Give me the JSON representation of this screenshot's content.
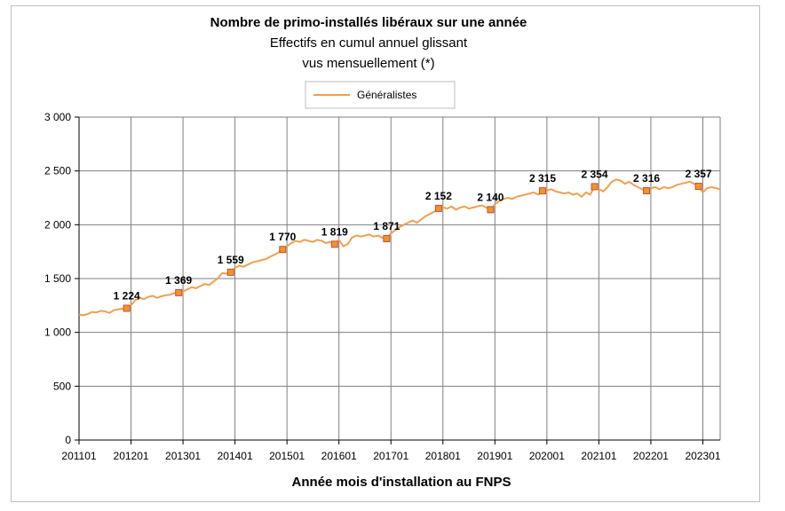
{
  "chart_data": {
    "type": "line",
    "title": "Nombre de primo-installés libéraux sur une année",
    "subtitle_lines": [
      "Effectifs en cumul annuel glissant",
      "vus mensuellement (*)"
    ],
    "xlabel": "Année mois d'installation au FNPS",
    "ylabel": "",
    "ylim": [
      0,
      3000
    ],
    "yticks": [
      0,
      500,
      1000,
      1500,
      2000,
      2500,
      3000
    ],
    "ytick_labels": [
      "0",
      "500",
      "1 000",
      "1 500",
      "2 000",
      "2 500",
      "3 000"
    ],
    "xtick_labels": [
      "201101",
      "201201",
      "201301",
      "201401",
      "201501",
      "201601",
      "201701",
      "201801",
      "201901",
      "202001",
      "202101",
      "202201",
      "202301"
    ],
    "grid": true,
    "legend_position": "top-center",
    "colors": {
      "series": "#f0a050",
      "marker_fill": "#f7941d",
      "marker_edge": "#c0504d",
      "grid": "#7f7f7f"
    },
    "series": [
      {
        "name": "Généralistes",
        "x_start": "201101",
        "frequency": "monthly",
        "values": [
          1165,
          1160,
          1170,
          1190,
          1185,
          1200,
          1195,
          1180,
          1205,
          1215,
          1220,
          1224,
          1250,
          1300,
          1320,
          1310,
          1330,
          1340,
          1320,
          1335,
          1345,
          1350,
          1365,
          1369,
          1380,
          1400,
          1420,
          1410,
          1430,
          1450,
          1440,
          1470,
          1500,
          1550,
          1545,
          1559,
          1600,
          1620,
          1610,
          1630,
          1650,
          1660,
          1670,
          1680,
          1700,
          1720,
          1740,
          1770,
          1800,
          1830,
          1850,
          1840,
          1860,
          1850,
          1840,
          1860,
          1850,
          1830,
          1840,
          1819,
          1860,
          1800,
          1820,
          1880,
          1900,
          1890,
          1900,
          1910,
          1890,
          1900,
          1880,
          1871,
          1920,
          1950,
          1980,
          2000,
          2020,
          2040,
          2020,
          2050,
          2080,
          2100,
          2120,
          2152,
          2160,
          2150,
          2170,
          2140,
          2160,
          2170,
          2150,
          2160,
          2170,
          2180,
          2160,
          2140,
          2190,
          2220,
          2240,
          2250,
          2240,
          2260,
          2270,
          2280,
          2290,
          2300,
          2280,
          2315,
          2320,
          2330,
          2310,
          2300,
          2290,
          2300,
          2280,
          2290,
          2260,
          2300,
          2280,
          2354,
          2330,
          2310,
          2350,
          2400,
          2420,
          2410,
          2380,
          2400,
          2370,
          2350,
          2330,
          2316,
          2340,
          2350,
          2330,
          2350,
          2340,
          2350,
          2370,
          2380,
          2390,
          2400,
          2380,
          2357,
          2300,
          2340,
          2350,
          2340,
          2330
        ]
      }
    ],
    "data_labels": [
      {
        "x": "201112",
        "value": 1224,
        "text": "1 224"
      },
      {
        "x": "201212",
        "value": 1369,
        "text": "1 369"
      },
      {
        "x": "201312",
        "value": 1559,
        "text": "1 559"
      },
      {
        "x": "201412",
        "value": 1770,
        "text": "1 770"
      },
      {
        "x": "201512",
        "value": 1819,
        "text": "1 819"
      },
      {
        "x": "201612",
        "value": 1871,
        "text": "1 871"
      },
      {
        "x": "201712",
        "value": 2152,
        "text": "2 152"
      },
      {
        "x": "201812",
        "value": 2140,
        "text": "2 140"
      },
      {
        "x": "201912",
        "value": 2315,
        "text": "2 315"
      },
      {
        "x": "202012",
        "value": 2354,
        "text": "2 354"
      },
      {
        "x": "202112",
        "value": 2316,
        "text": "2 316"
      },
      {
        "x": "202212",
        "value": 2357,
        "text": "2 357"
      }
    ]
  }
}
